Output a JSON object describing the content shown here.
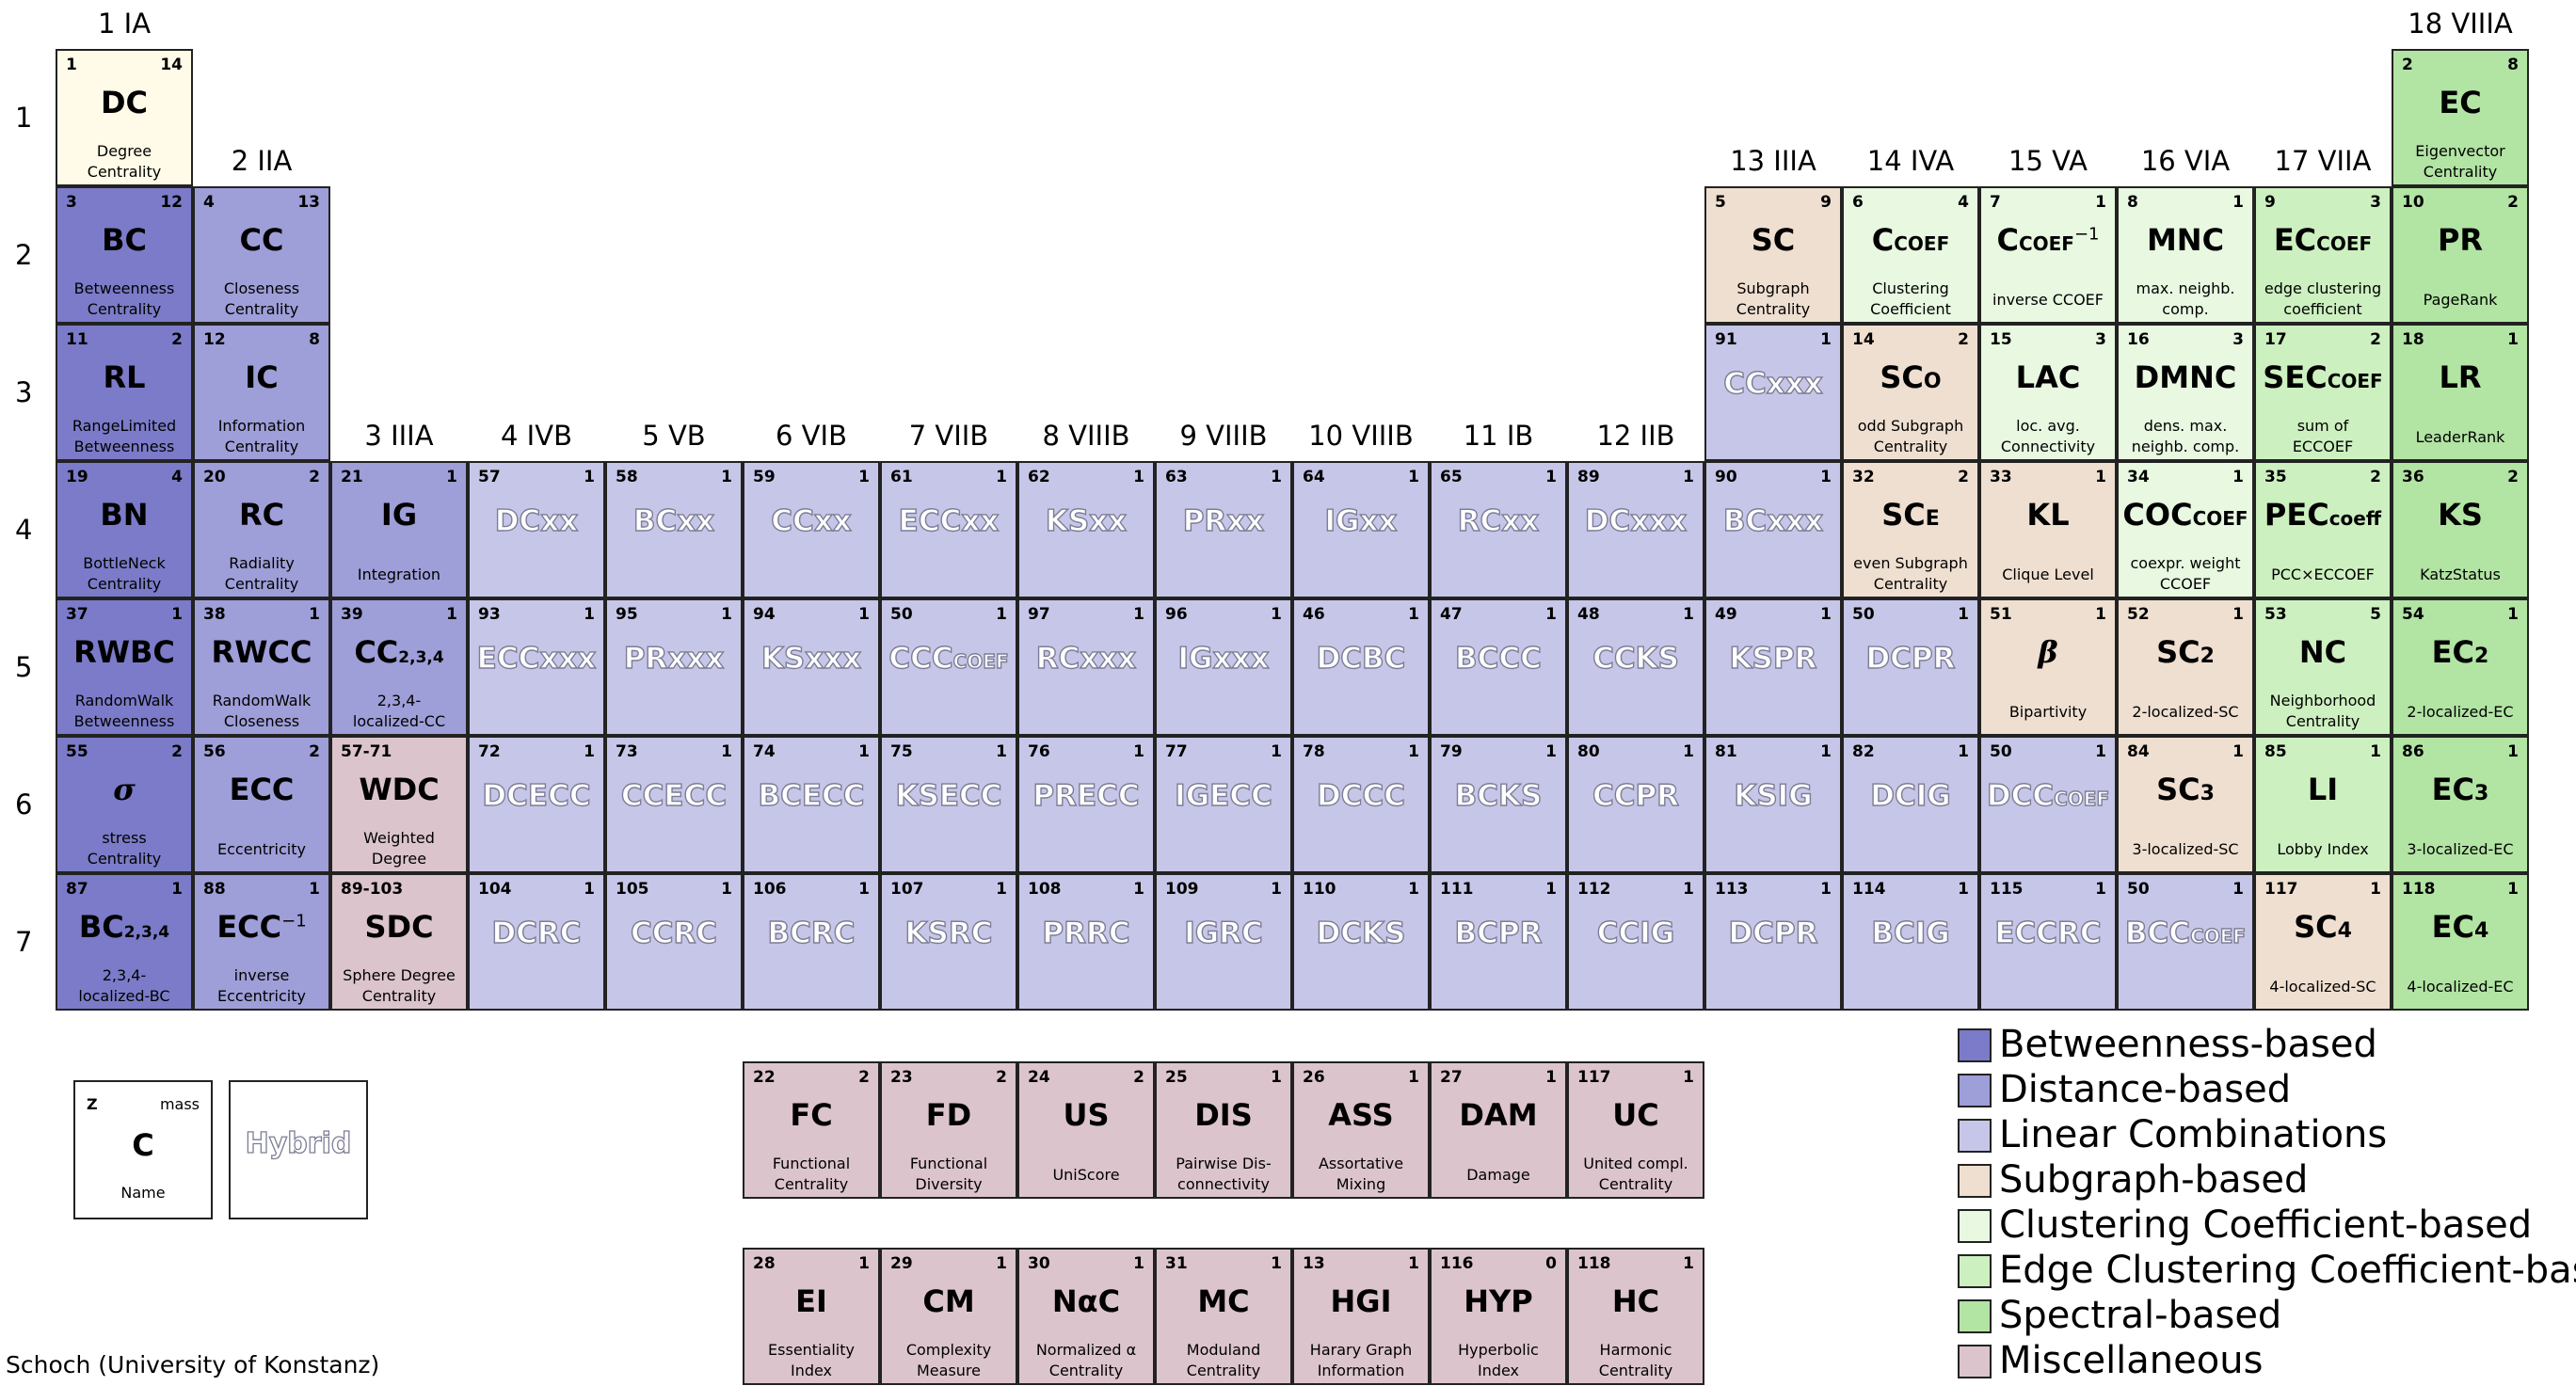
{
  "colors": {
    "betweenness": "#7b7bc9",
    "distance": "#9e9ed8",
    "linear": "#c6c6e8",
    "subgraph": "#efdfd0",
    "clustering": "#e8f8e1",
    "edge_clustering": "#cdf0c0",
    "spectral": "#b2e4a4",
    "misc": "#dcc4cc",
    "degree": "#fffbe8",
    "hybrid_text": "#7d7d96"
  },
  "group_labels": [
    "1 IA",
    "2 IIA",
    "3 IIIA",
    "4 IVB",
    "5 VB",
    "6 VIB",
    "7 VIIB",
    "8 VIIIB",
    "9 VIIIB",
    "10 VIIIB",
    "11 IB",
    "12 IIB",
    "13 IIIA",
    "14 IVA",
    "15 VA",
    "16 VIA",
    "17 VIIA",
    "18 VIIIA"
  ],
  "row_labels": [
    "1",
    "2",
    "3",
    "4",
    "5",
    "6",
    "7"
  ],
  "cells": [
    {
      "g": 1,
      "r": 1,
      "z": "1",
      "m": "14",
      "sym": "DC",
      "name": [
        "Degree",
        "Centrality"
      ],
      "cat": "degree"
    },
    {
      "g": 18,
      "r": 1,
      "z": "2",
      "m": "8",
      "sym": "EC",
      "name": [
        "Eigenvector",
        "Centrality"
      ],
      "cat": "spectral"
    },
    {
      "g": 1,
      "r": 2,
      "z": "3",
      "m": "12",
      "sym": "BC",
      "name": [
        "Betweenness",
        "Centrality"
      ],
      "cat": "betweenness"
    },
    {
      "g": 2,
      "r": 2,
      "z": "4",
      "m": "13",
      "sym": "CC",
      "name": [
        "Closeness",
        "Centrality"
      ],
      "cat": "distance"
    },
    {
      "g": 13,
      "r": 2,
      "z": "5",
      "m": "9",
      "sym": "SC",
      "name": [
        "Subgraph",
        "Centrality"
      ],
      "cat": "subgraph"
    },
    {
      "g": 14,
      "r": 2,
      "z": "6",
      "m": "4",
      "sym": "C",
      "sub": "COEF",
      "name": [
        "Clustering",
        "Coefficient"
      ],
      "cat": "clustering"
    },
    {
      "g": 15,
      "r": 2,
      "z": "7",
      "m": "1",
      "sym": "C",
      "sub": "COEF",
      "sup": "−1",
      "name": [
        "inverse CCOEF"
      ],
      "cat": "clustering"
    },
    {
      "g": 16,
      "r": 2,
      "z": "8",
      "m": "1",
      "sym": "MNC",
      "name": [
        "max. neighb.",
        "comp."
      ],
      "cat": "clustering"
    },
    {
      "g": 17,
      "r": 2,
      "z": "9",
      "m": "3",
      "sym": "EC",
      "sub": "COEF",
      "name": [
        "edge clustering",
        "coefficient"
      ],
      "cat": "edge_clustering"
    },
    {
      "g": 18,
      "r": 2,
      "z": "10",
      "m": "2",
      "sym": "PR",
      "name": [
        "PageRank"
      ],
      "cat": "spectral"
    },
    {
      "g": 1,
      "r": 3,
      "z": "11",
      "m": "2",
      "sym": "RL",
      "name": [
        "RangeLimited",
        "Betweenness"
      ],
      "cat": "betweenness"
    },
    {
      "g": 2,
      "r": 3,
      "z": "12",
      "m": "8",
      "sym": "IC",
      "name": [
        "Information",
        "Centrality"
      ],
      "cat": "distance"
    },
    {
      "g": 13,
      "r": 3,
      "z": "91",
      "m": "1",
      "sym": "CCxxx",
      "hybrid": true,
      "cat": "linear"
    },
    {
      "g": 14,
      "r": 3,
      "z": "14",
      "m": "2",
      "sym": "SC",
      "sub": "O",
      "name": [
        "odd Subgraph",
        "Centrality"
      ],
      "cat": "subgraph"
    },
    {
      "g": 15,
      "r": 3,
      "z": "15",
      "m": "3",
      "sym": "LAC",
      "name": [
        "loc. avg.",
        "Connectivity"
      ],
      "cat": "clustering"
    },
    {
      "g": 16,
      "r": 3,
      "z": "16",
      "m": "3",
      "sym": "DMNC",
      "name": [
        "dens. max.",
        "neighb. comp."
      ],
      "cat": "clustering"
    },
    {
      "g": 17,
      "r": 3,
      "z": "17",
      "m": "2",
      "sym": "SEC",
      "sub": "COEF",
      "name": [
        "sum of",
        "ECCOEF"
      ],
      "cat": "edge_clustering"
    },
    {
      "g": 18,
      "r": 3,
      "z": "18",
      "m": "1",
      "sym": "LR",
      "name": [
        "LeaderRank"
      ],
      "cat": "spectral"
    },
    {
      "g": 1,
      "r": 4,
      "z": "19",
      "m": "4",
      "sym": "BN",
      "name": [
        "BottleNeck",
        "Centrality"
      ],
      "cat": "betweenness"
    },
    {
      "g": 2,
      "r": 4,
      "z": "20",
      "m": "2",
      "sym": "RC",
      "name": [
        "Radiality",
        "Centrality"
      ],
      "cat": "distance"
    },
    {
      "g": 3,
      "r": 4,
      "z": "21",
      "m": "1",
      "sym": "IG",
      "name": [
        "Integration"
      ],
      "cat": "distance"
    },
    {
      "g": 4,
      "r": 4,
      "z": "57",
      "m": "1",
      "sym": "DCxx",
      "hybrid": true,
      "cat": "linear"
    },
    {
      "g": 5,
      "r": 4,
      "z": "58",
      "m": "1",
      "sym": "BCxx",
      "hybrid": true,
      "cat": "linear"
    },
    {
      "g": 6,
      "r": 4,
      "z": "59",
      "m": "1",
      "sym": "CCxx",
      "hybrid": true,
      "cat": "linear"
    },
    {
      "g": 7,
      "r": 4,
      "z": "61",
      "m": "1",
      "sym": "ECCxx",
      "hybrid": true,
      "cat": "linear"
    },
    {
      "g": 8,
      "r": 4,
      "z": "62",
      "m": "1",
      "sym": "KSxx",
      "hybrid": true,
      "cat": "linear"
    },
    {
      "g": 9,
      "r": 4,
      "z": "63",
      "m": "1",
      "sym": "PRxx",
      "hybrid": true,
      "cat": "linear"
    },
    {
      "g": 10,
      "r": 4,
      "z": "64",
      "m": "1",
      "sym": "IGxx",
      "hybrid": true,
      "cat": "linear"
    },
    {
      "g": 11,
      "r": 4,
      "z": "65",
      "m": "1",
      "sym": "RCxx",
      "hybrid": true,
      "cat": "linear"
    },
    {
      "g": 12,
      "r": 4,
      "z": "89",
      "m": "1",
      "sym": "DCxxx",
      "hybrid": true,
      "cat": "linear"
    },
    {
      "g": 13,
      "r": 4,
      "z": "90",
      "m": "1",
      "sym": "BCxxx",
      "hybrid": true,
      "cat": "linear"
    },
    {
      "g": 14,
      "r": 4,
      "z": "32",
      "m": "2",
      "sym": "SC",
      "sub": "E",
      "name": [
        "even Subgraph",
        "Centrality"
      ],
      "cat": "subgraph"
    },
    {
      "g": 15,
      "r": 4,
      "z": "33",
      "m": "1",
      "sym": "KL",
      "name": [
        "Clique Level"
      ],
      "cat": "subgraph"
    },
    {
      "g": 16,
      "r": 4,
      "z": "34",
      "m": "1",
      "sym": "COC",
      "sub": "COEF",
      "name": [
        "coexpr. weight",
        "CCOEF"
      ],
      "cat": "clustering"
    },
    {
      "g": 17,
      "r": 4,
      "z": "35",
      "m": "2",
      "sym": "PEC",
      "sub": "coeff",
      "name": [
        "PCC×ECCOEF"
      ],
      "cat": "edge_clustering"
    },
    {
      "g": 18,
      "r": 4,
      "z": "36",
      "m": "2",
      "sym": "KS",
      "name": [
        "KatzStatus"
      ],
      "cat": "spectral"
    },
    {
      "g": 1,
      "r": 5,
      "z": "37",
      "m": "1",
      "sym": "RWBC",
      "name": [
        "RandomWalk",
        "Betweenness"
      ],
      "cat": "betweenness"
    },
    {
      "g": 2,
      "r": 5,
      "z": "38",
      "m": "1",
      "sym": "RWCC",
      "name": [
        "RandomWalk",
        "Closeness"
      ],
      "cat": "distance"
    },
    {
      "g": 3,
      "r": 5,
      "z": "39",
      "m": "1",
      "sym": "CC",
      "sub": "2,3,4",
      "name": [
        "2,3,4-",
        "localized-CC"
      ],
      "cat": "distance"
    },
    {
      "g": 4,
      "r": 5,
      "z": "93",
      "m": "1",
      "sym": "ECCxxx",
      "hybrid": true,
      "cat": "linear"
    },
    {
      "g": 5,
      "r": 5,
      "z": "95",
      "m": "1",
      "sym": "PRxxx",
      "hybrid": true,
      "cat": "linear"
    },
    {
      "g": 6,
      "r": 5,
      "z": "94",
      "m": "1",
      "sym": "KSxxx",
      "hybrid": true,
      "cat": "linear"
    },
    {
      "g": 7,
      "r": 5,
      "z": "50",
      "m": "1",
      "sym": "CCC",
      "sub": "COEF",
      "hybrid": true,
      "cat": "linear"
    },
    {
      "g": 8,
      "r": 5,
      "z": "97",
      "m": "1",
      "sym": "RCxxx",
      "hybrid": true,
      "cat": "linear"
    },
    {
      "g": 9,
      "r": 5,
      "z": "96",
      "m": "1",
      "sym": "IGxxx",
      "hybrid": true,
      "cat": "linear"
    },
    {
      "g": 10,
      "r": 5,
      "z": "46",
      "m": "1",
      "sym": "DCBC",
      "hybrid": true,
      "cat": "linear"
    },
    {
      "g": 11,
      "r": 5,
      "z": "47",
      "m": "1",
      "sym": "BCCC",
      "hybrid": true,
      "cat": "linear"
    },
    {
      "g": 12,
      "r": 5,
      "z": "48",
      "m": "1",
      "sym": "CCKS",
      "hybrid": true,
      "cat": "linear"
    },
    {
      "g": 13,
      "r": 5,
      "z": "49",
      "m": "1",
      "sym": "KSPR",
      "hybrid": true,
      "cat": "linear"
    },
    {
      "g": 14,
      "r": 5,
      "z": "50",
      "m": "1",
      "sym": "DCPR",
      "hybrid": true,
      "cat": "linear"
    },
    {
      "g": 15,
      "r": 5,
      "z": "51",
      "m": "1",
      "sym": "β",
      "ital": true,
      "name": [
        "Bipartivity"
      ],
      "cat": "subgraph"
    },
    {
      "g": 16,
      "r": 5,
      "z": "52",
      "m": "1",
      "sym": "SC",
      "sub": "2",
      "name": [
        "2-localized-SC"
      ],
      "cat": "subgraph"
    },
    {
      "g": 17,
      "r": 5,
      "z": "53",
      "m": "5",
      "sym": "NC",
      "name": [
        "Neighborhood",
        "Centrality"
      ],
      "cat": "edge_clustering"
    },
    {
      "g": 18,
      "r": 5,
      "z": "54",
      "m": "1",
      "sym": "EC",
      "sub": "2",
      "name": [
        "2-localized-EC"
      ],
      "cat": "spectral"
    },
    {
      "g": 1,
      "r": 6,
      "z": "55",
      "m": "2",
      "sym": "σ",
      "ital": true,
      "name": [
        "stress",
        "Centrality"
      ],
      "cat": "betweenness"
    },
    {
      "g": 2,
      "r": 6,
      "z": "56",
      "m": "2",
      "sym": "ECC",
      "name": [
        "Eccentricity"
      ],
      "cat": "distance"
    },
    {
      "g": 3,
      "r": 6,
      "z": "57-71",
      "m": "",
      "sym": "WDC",
      "name": [
        "Weighted",
        "Degree"
      ],
      "cat": "misc"
    },
    {
      "g": 4,
      "r": 6,
      "z": "72",
      "m": "1",
      "sym": "DCECC",
      "hybrid": true,
      "cat": "linear"
    },
    {
      "g": 5,
      "r": 6,
      "z": "73",
      "m": "1",
      "sym": "CCECC",
      "hybrid": true,
      "cat": "linear"
    },
    {
      "g": 6,
      "r": 6,
      "z": "74",
      "m": "1",
      "sym": "BCECC",
      "hybrid": true,
      "cat": "linear"
    },
    {
      "g": 7,
      "r": 6,
      "z": "75",
      "m": "1",
      "sym": "KSECC",
      "hybrid": true,
      "cat": "linear"
    },
    {
      "g": 8,
      "r": 6,
      "z": "76",
      "m": "1",
      "sym": "PRECC",
      "hybrid": true,
      "cat": "linear"
    },
    {
      "g": 9,
      "r": 6,
      "z": "77",
      "m": "1",
      "sym": "IGECC",
      "hybrid": true,
      "cat": "linear"
    },
    {
      "g": 10,
      "r": 6,
      "z": "78",
      "m": "1",
      "sym": "DCCC",
      "hybrid": true,
      "cat": "linear"
    },
    {
      "g": 11,
      "r": 6,
      "z": "79",
      "m": "1",
      "sym": "BCKS",
      "hybrid": true,
      "cat": "linear"
    },
    {
      "g": 12,
      "r": 6,
      "z": "80",
      "m": "1",
      "sym": "CCPR",
      "hybrid": true,
      "cat": "linear"
    },
    {
      "g": 13,
      "r": 6,
      "z": "81",
      "m": "1",
      "sym": "KSIG",
      "hybrid": true,
      "cat": "linear"
    },
    {
      "g": 14,
      "r": 6,
      "z": "82",
      "m": "1",
      "sym": "DCIG",
      "hybrid": true,
      "cat": "linear"
    },
    {
      "g": 15,
      "r": 6,
      "z": "50",
      "m": "1",
      "sym": "DCC",
      "sub": "COEF",
      "hybrid": true,
      "cat": "linear"
    },
    {
      "g": 16,
      "r": 6,
      "z": "84",
      "m": "1",
      "sym": "SC",
      "sub": "3",
      "name": [
        "3-localized-SC"
      ],
      "cat": "subgraph"
    },
    {
      "g": 17,
      "r": 6,
      "z": "85",
      "m": "1",
      "sym": "LI",
      "name": [
        "Lobby Index"
      ],
      "cat": "edge_clustering"
    },
    {
      "g": 18,
      "r": 6,
      "z": "86",
      "m": "1",
      "sym": "EC",
      "sub": "3",
      "name": [
        "3-localized-EC"
      ],
      "cat": "spectral"
    },
    {
      "g": 1,
      "r": 7,
      "z": "87",
      "m": "1",
      "sym": "BC",
      "sub": "2,3,4",
      "name": [
        "2,3,4-",
        "localized-BC"
      ],
      "cat": "betweenness"
    },
    {
      "g": 2,
      "r": 7,
      "z": "88",
      "m": "1",
      "sym": "ECC",
      "sup": "−1",
      "name": [
        "inverse",
        "Eccentricity"
      ],
      "cat": "distance"
    },
    {
      "g": 3,
      "r": 7,
      "z": "89-103",
      "m": "",
      "sym": "SDC",
      "name": [
        "Sphere Degree",
        "Centrality"
      ],
      "cat": "misc"
    },
    {
      "g": 4,
      "r": 7,
      "z": "104",
      "m": "1",
      "sym": "DCRC",
      "hybrid": true,
      "cat": "linear"
    },
    {
      "g": 5,
      "r": 7,
      "z": "105",
      "m": "1",
      "sym": "CCRC",
      "hybrid": true,
      "cat": "linear"
    },
    {
      "g": 6,
      "r": 7,
      "z": "106",
      "m": "1",
      "sym": "BCRC",
      "hybrid": true,
      "cat": "linear"
    },
    {
      "g": 7,
      "r": 7,
      "z": "107",
      "m": "1",
      "sym": "KSRC",
      "hybrid": true,
      "cat": "linear"
    },
    {
      "g": 8,
      "r": 7,
      "z": "108",
      "m": "1",
      "sym": "PRRC",
      "hybrid": true,
      "cat": "linear"
    },
    {
      "g": 9,
      "r": 7,
      "z": "109",
      "m": "1",
      "sym": "IGRC",
      "hybrid": true,
      "cat": "linear"
    },
    {
      "g": 10,
      "r": 7,
      "z": "110",
      "m": "1",
      "sym": "DCKS",
      "hybrid": true,
      "cat": "linear"
    },
    {
      "g": 11,
      "r": 7,
      "z": "111",
      "m": "1",
      "sym": "BCPR",
      "hybrid": true,
      "cat": "linear"
    },
    {
      "g": 12,
      "r": 7,
      "z": "112",
      "m": "1",
      "sym": "CCIG",
      "hybrid": true,
      "cat": "linear"
    },
    {
      "g": 13,
      "r": 7,
      "z": "113",
      "m": "1",
      "sym": "DCPR",
      "hybrid": true,
      "cat": "linear"
    },
    {
      "g": 14,
      "r": 7,
      "z": "114",
      "m": "1",
      "sym": "BCIG",
      "hybrid": true,
      "cat": "linear"
    },
    {
      "g": 15,
      "r": 7,
      "z": "115",
      "m": "1",
      "sym": "ECCRC",
      "hybrid": true,
      "cat": "linear"
    },
    {
      "g": 16,
      "r": 7,
      "z": "50",
      "m": "1",
      "sym": "BCC",
      "sub": "COEF",
      "hybrid": true,
      "cat": "linear"
    },
    {
      "g": 17,
      "r": 7,
      "z": "117",
      "m": "1",
      "sym": "SC",
      "sub": "4",
      "name": [
        "4-localized-SC"
      ],
      "cat": "subgraph"
    },
    {
      "g": 18,
      "r": 7,
      "z": "118",
      "m": "1",
      "sym": "EC",
      "sub": "4",
      "name": [
        "4-localized-EC"
      ],
      "cat": "spectral"
    }
  ],
  "misc_rows": [
    [
      {
        "z": "22",
        "m": "2",
        "sym": "FC",
        "name": [
          "Functional",
          "Centrality"
        ]
      },
      {
        "z": "23",
        "m": "2",
        "sym": "FD",
        "name": [
          "Functional",
          "Diversity"
        ]
      },
      {
        "z": "24",
        "m": "2",
        "sym": "US",
        "name": [
          "UniScore"
        ]
      },
      {
        "z": "25",
        "m": "1",
        "sym": "DIS",
        "name": [
          "Pairwise Dis-",
          "connectivity"
        ]
      },
      {
        "z": "26",
        "m": "1",
        "sym": "ASS",
        "name": [
          "Assortative",
          "Mixing"
        ]
      },
      {
        "z": "27",
        "m": "1",
        "sym": "DAM",
        "name": [
          "Damage"
        ]
      },
      {
        "z": "117",
        "m": "1",
        "sym": "UC",
        "name": [
          "United compl.",
          "Centrality"
        ]
      }
    ],
    [
      {
        "z": "28",
        "m": "1",
        "sym": "EI",
        "name": [
          "Essentiality",
          "Index"
        ]
      },
      {
        "z": "29",
        "m": "1",
        "sym": "CM",
        "name": [
          "Complexity",
          "Measure"
        ]
      },
      {
        "z": "30",
        "m": "1",
        "sym": "NαC",
        "name": [
          "Normalized α",
          "Centrality"
        ]
      },
      {
        "z": "31",
        "m": "1",
        "sym": "MC",
        "name": [
          "Moduland",
          "Centrality"
        ]
      },
      {
        "z": "13",
        "m": "1",
        "sym": "HGI",
        "name": [
          "Harary Graph",
          "Information"
        ]
      },
      {
        "z": "116",
        "m": "0",
        "sym": "HYP",
        "name": [
          "Hyperbolic",
          "Index"
        ]
      },
      {
        "z": "118",
        "m": "1",
        "sym": "HC",
        "name": [
          "Harmonic",
          "Centrality"
        ]
      }
    ]
  ],
  "key_cell": {
    "z": "Z",
    "m": "mass",
    "sym": "C",
    "name": "Name"
  },
  "hybrid_key": "Hybrid",
  "legend": [
    {
      "label": "Betweenness-based",
      "cat": "betweenness"
    },
    {
      "label": "Distance-based",
      "cat": "distance"
    },
    {
      "label": "Linear Combinations",
      "cat": "linear"
    },
    {
      "label": "Subgraph-based",
      "cat": "subgraph"
    },
    {
      "label": "Clustering Coefficient-based",
      "cat": "clustering"
    },
    {
      "label": "Edge Clustering Coefficient-based",
      "cat": "edge_clustering"
    },
    {
      "label": "Spectral-based",
      "cat": "spectral"
    },
    {
      "label": "Miscellaneous",
      "cat": "misc"
    }
  ],
  "credit": "Schoch (University of Konstanz)"
}
